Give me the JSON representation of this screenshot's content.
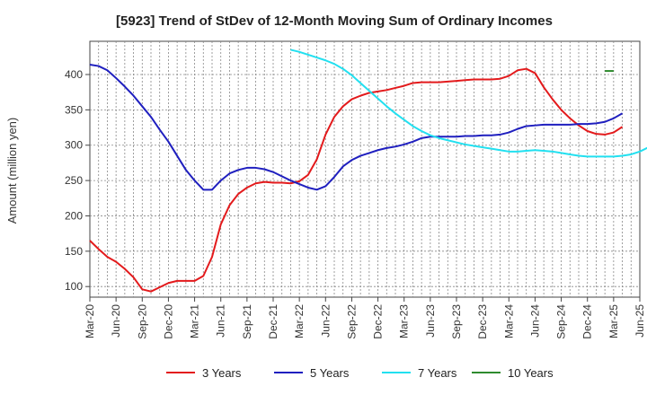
{
  "chart_data": {
    "type": "line",
    "title": "[5923]  Trend of StDev of 12-Month Moving Sum of Ordinary Incomes",
    "ylabel": "Amount (million yen)",
    "xlabel": "",
    "ylim": [
      85,
      447
    ],
    "yticks": [
      100,
      150,
      200,
      250,
      300,
      350,
      400
    ],
    "x_start": "Mar-20",
    "x_ticks": [
      "Mar-20",
      "Jun-20",
      "Sep-20",
      "Dec-20",
      "Mar-21",
      "Jun-21",
      "Sep-21",
      "Dec-21",
      "Mar-22",
      "Jun-22",
      "Sep-22",
      "Dec-22",
      "Mar-23",
      "Jun-23",
      "Sep-23",
      "Dec-23",
      "Mar-24",
      "Jun-24",
      "Sep-24",
      "Dec-24",
      "Mar-25",
      "Jun-25"
    ],
    "grid": true,
    "legend_position": "bottom",
    "series": [
      {
        "name": "3 Years",
        "color": "#e31a1c",
        "start": "Mar-20",
        "values": [
          165,
          153,
          142,
          135,
          125,
          113,
          96,
          93,
          99,
          105,
          108,
          108,
          108,
          115,
          142,
          188,
          215,
          231,
          240,
          246,
          248,
          247,
          247,
          246,
          249,
          258,
          280,
          315,
          340,
          355,
          365,
          370,
          374,
          376,
          378,
          381,
          384,
          388,
          389,
          389,
          389,
          390,
          391,
          392,
          393,
          393,
          393,
          394,
          398,
          406,
          408,
          402,
          382,
          365,
          350,
          338,
          328,
          320,
          316,
          315,
          318,
          326
        ]
      },
      {
        "name": "5 Years",
        "color": "#1f1fbf",
        "start": "Mar-20",
        "values": [
          414,
          412,
          406,
          395,
          383,
          370,
          355,
          340,
          322,
          305,
          285,
          265,
          250,
          237,
          237,
          250,
          260,
          265,
          268,
          268,
          266,
          262,
          256,
          250,
          245,
          240,
          237,
          242,
          255,
          270,
          279,
          285,
          289,
          293,
          296,
          298,
          301,
          305,
          310,
          312,
          312,
          312,
          312,
          313,
          313,
          314,
          314,
          315,
          318,
          323,
          327,
          328,
          329,
          329,
          329,
          329,
          330,
          330,
          331,
          333,
          338,
          345
        ]
      },
      {
        "name": "7 Years",
        "color": "#22e0f0",
        "start": "Feb-22",
        "values": [
          435,
          432,
          428,
          424,
          420,
          415,
          408,
          399,
          388,
          377,
          366,
          355,
          345,
          336,
          327,
          320,
          314,
          310,
          307,
          304,
          301,
          299,
          297,
          295,
          293,
          291,
          291,
          292,
          293,
          292,
          291,
          289,
          287,
          285,
          284,
          284,
          284,
          284,
          285,
          287,
          291,
          297
        ]
      },
      {
        "name": "10 Years",
        "color": "#2e8b2e",
        "start": "Feb-25",
        "values": [
          405,
          405
        ]
      }
    ]
  }
}
